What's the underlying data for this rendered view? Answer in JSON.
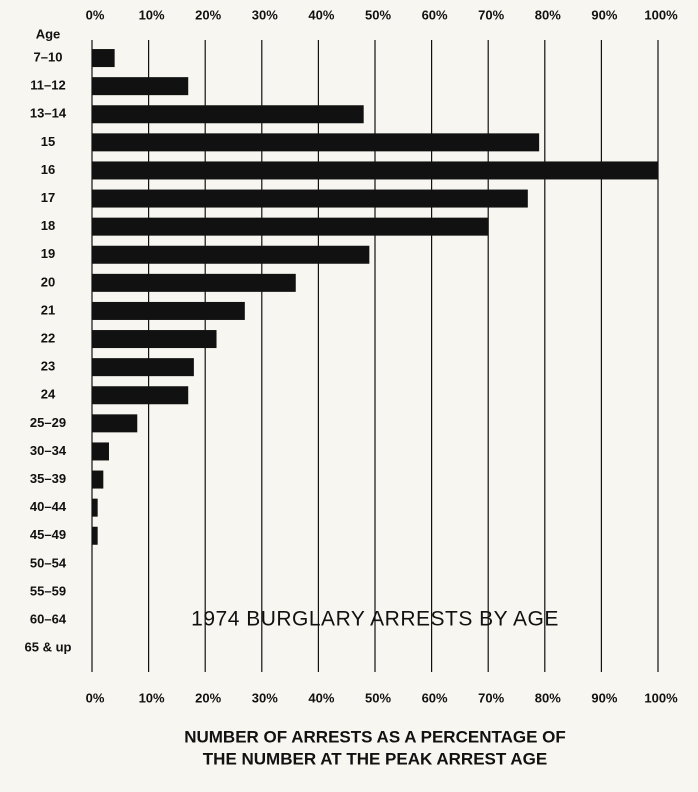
{
  "chart_data": {
    "type": "bar",
    "orientation": "horizontal",
    "title": "1974 BURGLARY ARRESTS BY AGE",
    "y_label": "Age",
    "x_label": [
      "NUMBER OF ARRESTS AS A PERCENTAGE OF",
      "THE NUMBER AT THE PEAK ARREST AGE"
    ],
    "categories": [
      "7–10",
      "11–12",
      "13–14",
      "15",
      "16",
      "17",
      "18",
      "19",
      "20",
      "21",
      "22",
      "23",
      "24",
      "25–29",
      "30–34",
      "35–39",
      "40–44",
      "45–49",
      "50–54",
      "55–59",
      "60–64",
      "65 & up"
    ],
    "values": [
      4,
      17,
      48,
      79,
      100,
      77,
      70,
      49,
      36,
      27,
      22,
      18,
      17,
      8,
      3,
      2,
      1,
      1,
      0,
      0,
      0,
      0
    ],
    "color": "#111111",
    "xlim": [
      0,
      100
    ],
    "xticks": [
      {
        "value": 0,
        "label": "0%"
      },
      {
        "value": 10,
        "label": "10%"
      },
      {
        "value": 20,
        "label": "20%"
      },
      {
        "value": 30,
        "label": "30%"
      },
      {
        "value": 40,
        "label": "40%"
      },
      {
        "value": 50,
        "label": "50%"
      },
      {
        "value": 60,
        "label": "60%"
      },
      {
        "value": 70,
        "label": "70%"
      },
      {
        "value": 80,
        "label": "80%"
      },
      {
        "value": 90,
        "label": "90%"
      },
      {
        "value": 100,
        "label": "100%"
      }
    ],
    "grid": true
  }
}
